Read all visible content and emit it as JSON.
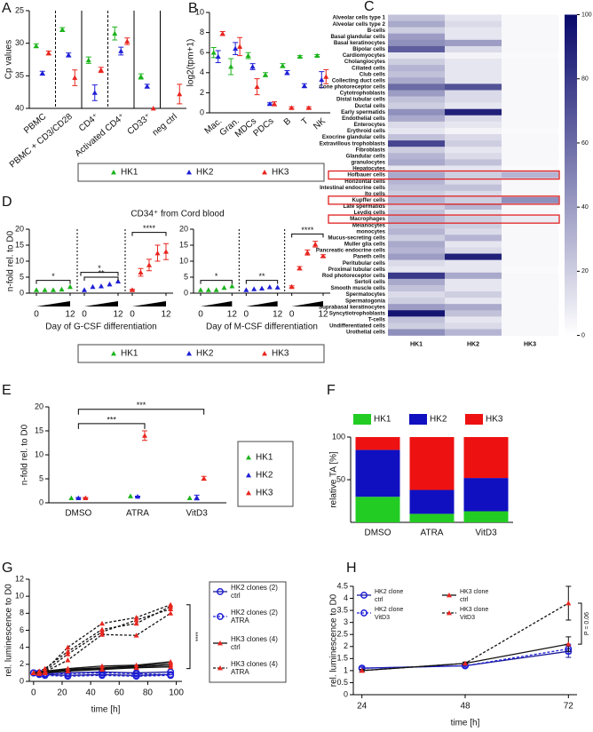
{
  "chart_data": [
    {
      "panel": "A",
      "type": "scatter",
      "ylabel": "Cp values",
      "reverse_y": true,
      "categories": [
        "PBMC",
        "PBMC + CD3/CD28",
        "CD4⁺",
        "Activated CD4⁺",
        "CD33⁺",
        "neg ctrl"
      ],
      "ylim": [
        25,
        40
      ],
      "yticks": [
        25,
        30,
        35,
        40
      ],
      "series": [
        {
          "name": "HK1",
          "color": "#1db41d",
          "values": [
            30.4,
            27.9,
            32.6,
            28.5,
            35.1,
            null
          ],
          "errors": [
            0.3,
            0.3,
            0.5,
            1.0,
            0.4,
            null
          ]
        },
        {
          "name": "HK2",
          "color": "#1f1fd6",
          "values": [
            34.6,
            31.8,
            37.6,
            31.2,
            36.6,
            null
          ],
          "errors": [
            0.3,
            0.3,
            1.2,
            0.6,
            0.3,
            null
          ]
        },
        {
          "name": "HK3",
          "color": "#e8261f",
          "values": [
            31.5,
            35.3,
            34.1,
            29.7,
            40,
            37.8
          ],
          "errors": [
            0.3,
            1.2,
            0.4,
            0.5,
            null,
            1.5
          ]
        }
      ]
    },
    {
      "panel": "B",
      "type": "scatter",
      "ylabel": "log2(tpm+1)",
      "categories": [
        "Mac.",
        "Gran.",
        "MDCs",
        "PDCs",
        "B",
        "T",
        "NK"
      ],
      "ylim": [
        0,
        10
      ],
      "yticks": [
        0,
        2,
        4,
        6,
        8,
        10
      ],
      "series": [
        {
          "name": "HK1",
          "color": "#1db41d",
          "values": [
            6.0,
            4.6,
            5.7,
            3.8,
            4.7,
            5.6,
            5.7
          ],
          "errors": [
            0.5,
            0.8,
            0.3,
            0.2,
            0.2,
            0.1,
            0.1
          ]
        },
        {
          "name": "HK2",
          "color": "#1f1fd6",
          "values": [
            5.6,
            6.4,
            4.6,
            0.9,
            4.0,
            2.7,
            3.3
          ],
          "errors": [
            0.6,
            0.6,
            0.3,
            0.1,
            0.2,
            0.2,
            0.8
          ]
        },
        {
          "name": "HK3",
          "color": "#e8261f",
          "values": [
            7.9,
            6.6,
            2.6,
            0.9,
            0.5,
            0.5,
            3.6
          ],
          "errors": [
            0.2,
            0.9,
            0.8,
            0.2,
            0.1,
            0.1,
            0.7
          ]
        }
      ]
    },
    {
      "panel": "C",
      "type": "heatmap",
      "columns": [
        "HK1",
        "HK2",
        "HK3"
      ],
      "rows": [
        "Alveolar cells type 1",
        "Alveolar cells type 2",
        "B-cells",
        "Basal glandular cells",
        "Basal keratinocytes",
        "Bipolar cells",
        "Cardiomyocytes",
        "Cholangiocytes",
        "Ciliated cells",
        "Club cells",
        "Collecting duct cells",
        "Cone photoreceptor cells",
        "Cytotrophoblasts",
        "Distal tubular cells",
        "Ductal cells",
        "Early spermatids",
        "Endothelial cells",
        "Enterocytes",
        "Erythroid cells",
        "Exocrine glandular cells",
        "Extravillous trophoblasts",
        "Fibroblasts",
        "Glandular cells",
        "granulocytes",
        "Hepatocytes",
        "Hofbauer cells",
        "Horizontal cells",
        "Intestinal endocrine cells",
        "Ito cells",
        "Kupffer cells",
        "Late spermatids",
        "Leydig cells",
        "Macrophages",
        "Melanocytes",
        "monocytes",
        "Mucus-secreting cells",
        "Muller glia cells",
        "Pancreatic endocrine cells",
        "Paneth cells",
        "Peritubular cells",
        "Proximal tubular cells",
        "Rod photoreceptor cells",
        "Sertoli cells",
        "Smooth muscle cells",
        "Spermatocytes",
        "Spermatogonia",
        "Suprabasal keratinocytes",
        "Syncytiotrophoblasts",
        "T-cells",
        "Undifferentiated cells",
        "Urothelial cells"
      ],
      "values": [
        [
          25,
          10,
          3
        ],
        [
          35,
          15,
          3
        ],
        [
          20,
          10,
          3
        ],
        [
          40,
          10,
          3
        ],
        [
          45,
          40,
          3
        ],
        [
          65,
          15,
          3
        ],
        [
          10,
          5,
          2
        ],
        [
          20,
          10,
          3
        ],
        [
          30,
          10,
          3
        ],
        [
          25,
          10,
          3
        ],
        [
          35,
          10,
          3
        ],
        [
          60,
          70,
          3
        ],
        [
          40,
          15,
          3
        ],
        [
          25,
          15,
          3
        ],
        [
          20,
          10,
          3
        ],
        [
          45,
          90,
          3
        ],
        [
          35,
          15,
          3
        ],
        [
          15,
          10,
          3
        ],
        [
          10,
          5,
          2
        ],
        [
          25,
          15,
          3
        ],
        [
          75,
          20,
          3
        ],
        [
          20,
          10,
          3
        ],
        [
          30,
          15,
          3
        ],
        [
          35,
          25,
          3
        ],
        [
          10,
          10,
          2
        ],
        [
          35,
          20,
          30
        ],
        [
          30,
          15,
          3
        ],
        [
          25,
          25,
          3
        ],
        [
          20,
          15,
          3
        ],
        [
          30,
          20,
          45
        ],
        [
          20,
          30,
          3
        ],
        [
          25,
          10,
          3
        ],
        [
          30,
          20,
          8
        ],
        [
          25,
          20,
          3
        ],
        [
          30,
          15,
          3
        ],
        [
          20,
          30,
          3
        ],
        [
          35,
          10,
          3
        ],
        [
          30,
          15,
          3
        ],
        [
          40,
          90,
          3
        ],
        [
          15,
          10,
          3
        ],
        [
          10,
          10,
          2
        ],
        [
          80,
          35,
          3
        ],
        [
          35,
          10,
          3
        ],
        [
          25,
          10,
          3
        ],
        [
          15,
          20,
          3
        ],
        [
          20,
          10,
          3
        ],
        [
          40,
          35,
          3
        ],
        [
          95,
          25,
          3
        ],
        [
          25,
          10,
          3
        ],
        [
          20,
          15,
          3
        ],
        [
          45,
          30,
          3
        ]
      ],
      "zlim": [
        0,
        100
      ],
      "zticks": [
        0,
        20,
        40,
        60,
        80,
        100
      ],
      "low_color": "#ffffff",
      "high_color": "#08086b",
      "highlight_rows": [
        25,
        29,
        32
      ],
      "highlight_color": "#e02020"
    },
    {
      "panel": "D",
      "type": "strip",
      "title": "CD34⁺ from Cord blood",
      "ylabel": "n-fold rel. to D0",
      "ylim": [
        0,
        20
      ],
      "yticks": [
        0,
        5,
        10,
        15,
        20
      ],
      "x": [
        0,
        3,
        6,
        9,
        12
      ],
      "xlim": [
        0,
        12
      ],
      "xticks": [
        0,
        12
      ],
      "subplots": [
        {
          "xlabel": "Day of G-CSF differentiation",
          "annotations": [
            "*",
            "*",
            "**",
            "****"
          ],
          "series": [
            {
              "name": "HK1",
              "color": "#1db41d",
              "values": [
                1,
                1,
                1,
                1.2,
                2
              ]
            },
            {
              "name": "HK2",
              "color": "#1f1fd6",
              "values": [
                1,
                2,
                2.2,
                2.8,
                3.7
              ]
            },
            {
              "name": "HK3",
              "color": "#e8261f",
              "values": [
                1,
                6.5,
                8.8,
                12.5,
                13
              ],
              "errors": [
                0.2,
                1.2,
                1.8,
                2.5,
                2.5
              ]
            }
          ]
        },
        {
          "xlabel": "Day of M-CSF differentiation",
          "annotations": [
            "*",
            "**",
            "****"
          ],
          "series": [
            {
              "name": "HK1",
              "color": "#1db41d",
              "values": [
                1,
                1,
                1,
                1.7,
                2.2
              ]
            },
            {
              "name": "HK2",
              "color": "#1f1fd6",
              "values": [
                1,
                1.3,
                1.5,
                1.9,
                1.8
              ]
            },
            {
              "name": "HK3",
              "color": "#e8261f",
              "values": [
                2,
                7.8,
                12.7,
                15.3,
                11.6
              ],
              "errors": [
                0.3,
                0.5,
                0.8,
                0.9,
                0.4
              ]
            }
          ]
        }
      ]
    },
    {
      "panel": "E",
      "type": "scatter",
      "ylabel": "n-fold rel. to D0",
      "categories": [
        "DMSO",
        "ATRA",
        "VitD3"
      ],
      "ylim": [
        0,
        20
      ],
      "yticks": [
        0,
        5,
        10,
        15,
        20
      ],
      "annotations": [
        "***",
        "***"
      ],
      "series": [
        {
          "name": "HK1",
          "color": "#1db41d",
          "values": [
            1,
            1.4,
            1
          ]
        },
        {
          "name": "HK2",
          "color": "#1f1fd6",
          "values": [
            1,
            1.3,
            1.1
          ],
          "errors": [
            0.1,
            0.1,
            0.5
          ]
        },
        {
          "name": "HK3",
          "color": "#e8261f",
          "values": [
            1,
            14,
            5.1
          ],
          "errors": [
            0.1,
            1,
            0.4
          ]
        }
      ]
    },
    {
      "panel": "F",
      "type": "bar",
      "stacked": true,
      "ylabel": "relative TA [%]",
      "categories": [
        "DMSO",
        "ATRA",
        "VitD3"
      ],
      "ylim": [
        0,
        100
      ],
      "yticks": [
        50,
        100
      ],
      "series": [
        {
          "name": "HK1",
          "color": "#22cc22",
          "values": [
            30,
            10,
            13
          ]
        },
        {
          "name": "HK2",
          "color": "#1010c0",
          "values": [
            55,
            28,
            39
          ]
        },
        {
          "name": "HK3",
          "color": "#ee1111",
          "values": [
            15,
            62,
            48
          ]
        }
      ]
    },
    {
      "panel": "G",
      "type": "line",
      "xlabel": "time [h]",
      "ylabel": "rel. luminescence to D0",
      "x": [
        0,
        4,
        8,
        24,
        48,
        72,
        96
      ],
      "xlim": [
        -3,
        104
      ],
      "xticks": [
        0,
        20,
        40,
        60,
        80,
        100
      ],
      "ylim": [
        0,
        12
      ],
      "yticks": [
        0,
        2,
        4,
        6,
        8,
        10,
        12
      ],
      "annotations": [
        "****"
      ],
      "series": [
        {
          "name": "HK2 clones (2)",
          "sub": "ctrl",
          "color": "#1a1a9a",
          "marker": "circle",
          "marker_color": "#1f1fd6",
          "dash": false,
          "lines": [
            [
              1,
              0.9,
              0.8,
              0.7,
              0.8,
              0.7,
              0.8
            ],
            [
              1,
              0.9,
              0.9,
              1,
              1.1,
              1.0,
              1.1
            ]
          ]
        },
        {
          "name": "HK2 clones (2)",
          "sub": "ATRA",
          "color": "#1f1fd6",
          "marker": "circle",
          "marker_color": "#1f1fd6",
          "dash": true,
          "lines": [
            [
              1,
              1,
              0.9,
              0.9,
              1.0,
              0.9,
              0.8
            ],
            [
              1,
              0.8,
              0.7,
              0.6,
              0.7,
              0.6,
              0.7
            ]
          ]
        },
        {
          "name": "HK3 clones (4)",
          "sub": "ctrl",
          "color": "#111111",
          "marker": "triangle",
          "marker_color": "#e8261f",
          "dash": false,
          "lines": [
            [
              1,
              1,
              1.1,
              1.4,
              1.6,
              1.8,
              2.1
            ],
            [
              1,
              0.9,
              1,
              1.3,
              1.5,
              1.7,
              1.9
            ],
            [
              1,
              1.1,
              1.2,
              1.5,
              1.8,
              1.9,
              2.3
            ],
            [
              1,
              0.9,
              1,
              1.2,
              1.4,
              1.6,
              1.7
            ]
          ]
        },
        {
          "name": "HK3 clones (4)",
          "sub": "ATRA",
          "color": "#111111",
          "marker": "triangle",
          "marker_color": "#e8261f",
          "dash": true,
          "lines": [
            [
              1,
              1.1,
              1.3,
              4,
              6.8,
              7.5,
              9
            ],
            [
              1,
              1,
              1.2,
              3.2,
              5.8,
              7.2,
              8.5
            ],
            [
              1,
              1.2,
              1.5,
              3.5,
              6.1,
              6.8,
              8.8
            ],
            [
              1,
              1,
              1.1,
              2.5,
              5.5,
              5.4,
              8
            ]
          ]
        }
      ]
    },
    {
      "panel": "H",
      "type": "line",
      "xlabel": "time [h]",
      "ylabel": "rel. luminescence to D0",
      "x": [
        24,
        48,
        72
      ],
      "xlim": [
        22,
        74
      ],
      "xticks": [
        24,
        48,
        72
      ],
      "ylim": [
        0,
        4.5
      ],
      "yticks": [
        0,
        0.5,
        1,
        1.5,
        2,
        2.5,
        3,
        3.5,
        4,
        4.5
      ],
      "annotations": [
        "P = 0.06"
      ],
      "series": [
        {
          "name": "HK2 clone",
          "sub": "ctrl",
          "color": "#1a1a9a",
          "marker": "circle",
          "marker_color": "#1f1fd6",
          "dash": false,
          "lines": [
            [
              1.1,
              1.2,
              1.8
            ]
          ],
          "errors": [
            [
              0.05,
              0.05,
              0.25
            ]
          ]
        },
        {
          "name": "HK2 clone",
          "sub": "VitD3",
          "color": "#1f1fd6",
          "marker": "circle",
          "marker_color": "#1f1fd6",
          "dash": true,
          "lines": [
            [
              1.1,
              1.2,
              1.9
            ]
          ],
          "errors": [
            [
              0.05,
              0.05,
              0.2
            ]
          ]
        },
        {
          "name": "HK3 clone",
          "sub": "ctrl",
          "color": "#111111",
          "marker": "triangle",
          "marker_color": "#e8261f",
          "dash": false,
          "lines": [
            [
              1.0,
              1.3,
              2.1
            ]
          ],
          "errors": [
            [
              0.05,
              0.05,
              0.3
            ]
          ]
        },
        {
          "name": "HK3 clone",
          "sub": "VitD3",
          "color": "#111111",
          "marker": "triangle",
          "marker_color": "#e8261f",
          "dash": true,
          "lines": [
            [
              1.0,
              1.3,
              3.8
            ]
          ],
          "errors": [
            [
              0.05,
              0.05,
              0.7
            ]
          ]
        }
      ]
    }
  ]
}
